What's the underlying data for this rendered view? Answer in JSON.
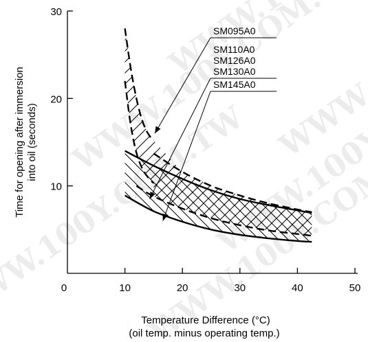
{
  "chart_data": {
    "type": "line",
    "xlabel": [
      "Temperature Difference (°C)",
      "(oil temp. minus operating temp.)"
    ],
    "ylabel": [
      "Time for opening after immersion",
      "into oil (seconds)"
    ],
    "xlim": [
      0,
      50
    ],
    "ylim": [
      0,
      30
    ],
    "x_ticks": [
      "0",
      "10",
      "20",
      "30",
      "40",
      "50"
    ],
    "y_ticks": [
      "10",
      "20",
      "30"
    ],
    "grid": false,
    "series": [
      {
        "name": "SM095A0",
        "style": "dashed",
        "x": [
          10,
          11,
          12,
          13,
          14,
          15
        ],
        "y": [
          28,
          23.5,
          20,
          17.5,
          16,
          15.2
        ]
      },
      {
        "name": "SM110A0",
        "style": "dashed",
        "x": [
          10,
          11,
          12,
          13,
          14,
          15
        ],
        "y": [
          22,
          17,
          13.8,
          12,
          11,
          10.3
        ]
      },
      {
        "name": "SM126A0 upper",
        "style": "dashed",
        "x": [
          15,
          20,
          25,
          30,
          35,
          40,
          42.5
        ],
        "y": [
          13.7,
          11.6,
          10,
          8.9,
          8.0,
          7.3,
          7.0
        ]
      },
      {
        "name": "SM126A0 lower",
        "style": "dashed",
        "x": [
          12,
          15,
          20,
          25,
          30,
          35,
          40,
          42.5
        ],
        "y": [
          10,
          8.8,
          7.4,
          6.3,
          5.5,
          4.9,
          4.5,
          4.3
        ]
      },
      {
        "name": "SM145A0 upper",
        "style": "solid",
        "x": [
          10,
          15,
          20,
          25,
          30,
          35,
          40,
          42.5
        ],
        "y": [
          14,
          12.3,
          10.8,
          9.5,
          8.5,
          7.8,
          7.2,
          6.9
        ]
      },
      {
        "name": "SM145A0 lower",
        "style": "solid",
        "x": [
          10,
          15,
          20,
          25,
          30,
          35,
          40,
          42.5
        ],
        "y": [
          8.9,
          7.1,
          5.9,
          5.0,
          4.4,
          4.0,
          3.7,
          3.6
        ]
      }
    ],
    "callouts": [
      {
        "label": "SM095A0",
        "target": [
          15.2,
          16
        ]
      },
      {
        "label": "SM110A0",
        "target": null
      },
      {
        "label": "SM126A0",
        "target": null
      },
      {
        "label": "SM130A0",
        "target": [
          14.3,
          8.5
        ]
      },
      {
        "label": "SM145A0",
        "target": [
          16.6,
          6
        ]
      }
    ],
    "watermark": "WWW.100Y.COM.TW"
  }
}
